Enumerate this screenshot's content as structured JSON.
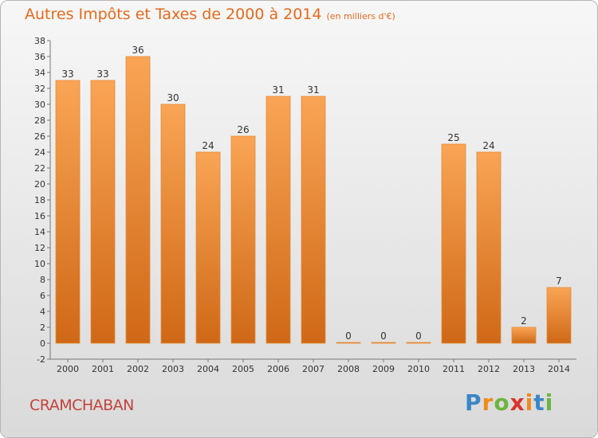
{
  "title": "Autres Impôts et Taxes de 2000 à 2014",
  "unit": "(en milliers d'€)",
  "commune": "CRAMCHABAN",
  "logo": {
    "letters": [
      "P",
      "r",
      "o",
      "x",
      "i",
      "t",
      "i"
    ],
    "colors": [
      "#3a86c8",
      "#f08a1c",
      "#6cb43f",
      "#d8342c",
      "#f08a1c",
      "#3a86c8",
      "#6cb43f"
    ]
  },
  "colors": {
    "bar_light": "#f9a555",
    "bar_dark": "#cf6816",
    "axis": "#777777"
  },
  "chart_data": {
    "type": "bar",
    "categories": [
      "2000",
      "2001",
      "2002",
      "2003",
      "2004",
      "2005",
      "2006",
      "2007",
      "2008",
      "2009",
      "2010",
      "2011",
      "2012",
      "2013",
      "2014"
    ],
    "values": [
      33,
      33,
      36,
      30,
      24,
      26,
      31,
      31,
      0,
      0,
      0,
      25,
      24,
      2,
      7
    ],
    "ylim": [
      -2,
      38
    ],
    "yticks": [
      -2,
      0,
      2,
      4,
      6,
      8,
      10,
      12,
      14,
      16,
      18,
      20,
      22,
      24,
      26,
      28,
      30,
      32,
      34,
      36,
      38
    ],
    "grid": false,
    "legend": "none"
  }
}
